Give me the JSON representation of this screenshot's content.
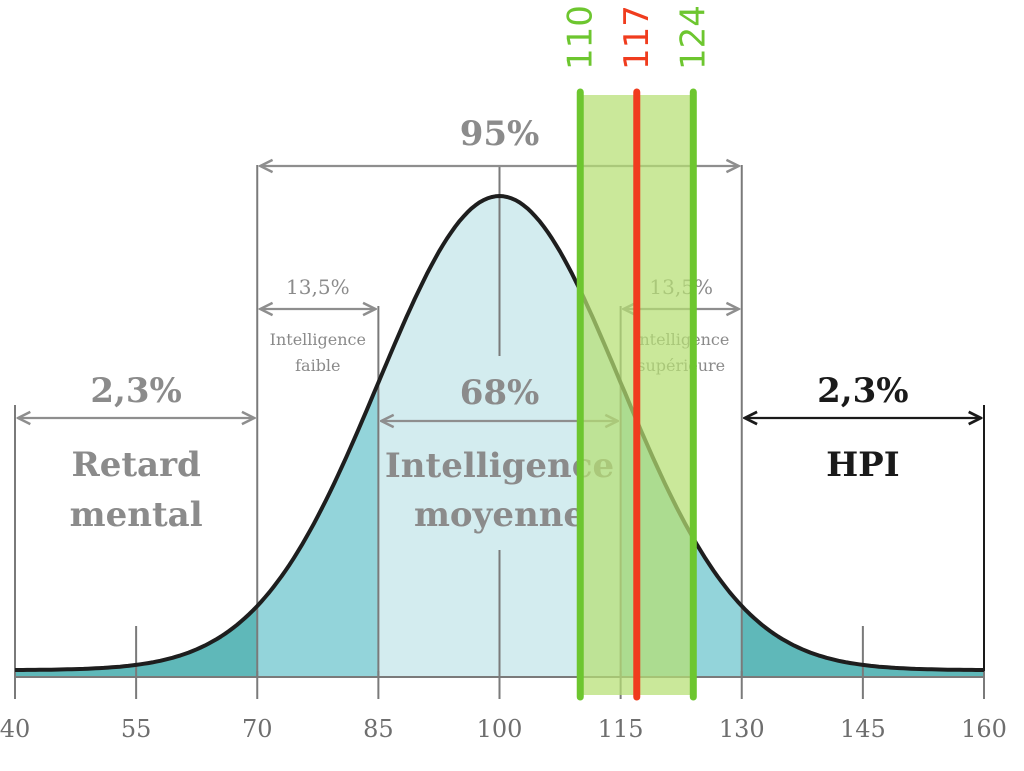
{
  "chart_data": {
    "type": "area",
    "title": "",
    "xlabel": "",
    "ylabel": "",
    "distribution": {
      "mean": 100,
      "sd": 15
    },
    "xlim": [
      40,
      160
    ],
    "x_ticks": [
      40,
      55,
      70,
      85,
      100,
      115,
      130,
      145,
      160
    ],
    "x_tick_labels": [
      "40",
      "55",
      "70",
      "85",
      "100",
      "115",
      "130",
      "145",
      "160"
    ],
    "regions": [
      {
        "from": 40,
        "to": 70,
        "color": "#5fb8b9"
      },
      {
        "from": 70,
        "to": 85,
        "color": "#93d4da"
      },
      {
        "from": 85,
        "to": 115,
        "color": "#d3ecef"
      },
      {
        "from": 115,
        "to": 130,
        "color": "#93d4da"
      },
      {
        "from": 130,
        "to": 160,
        "color": "#5fb8b9"
      }
    ],
    "ranges": [
      {
        "from": 70,
        "to": 130,
        "percent": "95%",
        "label": ""
      },
      {
        "from": 70,
        "to": 85,
        "percent": "13,5%",
        "label": "Intelligence faible"
      },
      {
        "from": 115,
        "to": 130,
        "percent": "13,5%",
        "label": "Intelligence supérieure"
      },
      {
        "from": 85,
        "to": 115,
        "percent": "68%",
        "label": "Intelligence moyenne"
      },
      {
        "from": 40,
        "to": 70,
        "percent": "2,3%",
        "label": "Retard mental"
      },
      {
        "from": 130,
        "to": 160,
        "percent": "2,3%",
        "label": "HPI"
      }
    ],
    "band": {
      "from": 110,
      "to": 124,
      "color": "#b6df73"
    },
    "markers": [
      {
        "value": 110,
        "label": "110",
        "color": "#6dc62f"
      },
      {
        "value": 117,
        "label": "117",
        "color": "#f03c1e"
      },
      {
        "value": 124,
        "label": "124",
        "color": "#6dc62f"
      }
    ]
  }
}
